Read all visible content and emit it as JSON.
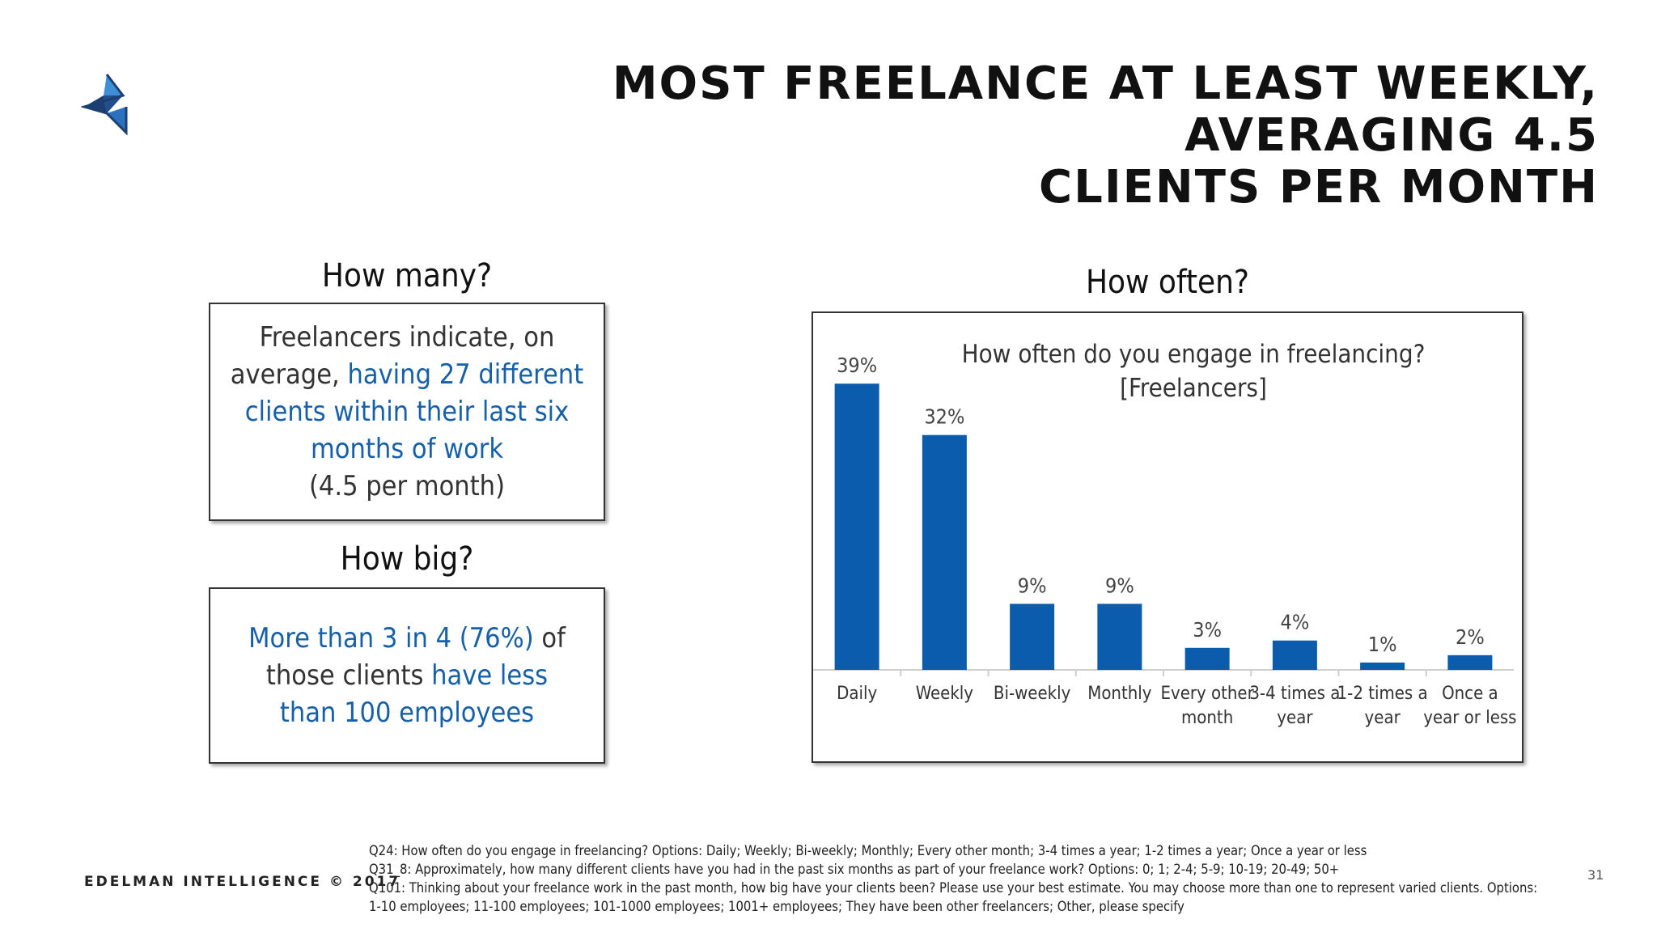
{
  "title_line1": "MOST FREELANCE AT LEAST WEEKLY, AVERAGING 4.5",
  "title_line2": "CLIENTS PER MONTH",
  "how_many": {
    "heading": "How many?",
    "text_pre": "Freelancers indicate, on average,",
    "text_highlight": "having 27 different clients within their last six months of work",
    "text_post": "(4.5 per month)"
  },
  "how_big": {
    "heading": "How big?",
    "highlight1": "More than 3 in 4 (76%)",
    "plain1": "of those clients",
    "highlight2": "have less than 100 employees"
  },
  "how_often_heading": "How often?",
  "chart_data": {
    "type": "bar",
    "title_line1": "How often do you engage in freelancing?",
    "title_line2": "[Freelancers]",
    "categories": [
      [
        "Daily"
      ],
      [
        "Weekly"
      ],
      [
        "Bi-weekly"
      ],
      [
        "Monthly"
      ],
      [
        "Every other",
        "month"
      ],
      [
        "3-4 times a",
        "year"
      ],
      [
        "1-2 times a",
        "year"
      ],
      [
        "Once a",
        "year or less"
      ]
    ],
    "values": [
      39,
      32,
      9,
      9,
      3,
      4,
      1,
      2
    ],
    "data_labels": [
      "39%",
      "32%",
      "9%",
      "9%",
      "3%",
      "4%",
      "1%",
      "2%"
    ],
    "bar_color": "#0b5cad",
    "ylim": [
      0,
      42
    ],
    "grid": false,
    "legend": "none"
  },
  "footer": {
    "brand": "EDELMAN INTELLIGENCE © 2017",
    "notes": [
      "Q24: How often do you engage in freelancing? Options: Daily; Weekly; Bi-weekly; Monthly; Every other month; 3-4 times a year; 1-2 times a year; Once a year or less",
      "Q31_8: Approximately, how many different clients have you had in the past six months as part of your freelance work? Options: 0; 1; 2-4; 5-9; 10-19; 20-49; 50+",
      "Q101: Thinking about your freelance work in the past month, how big have your clients been? Please use your best estimate. You may choose more than one to represent varied clients. Options:",
      "1-10 employees; 11-100 employees; 101-1000 employees; 1001+ employees; They have been other freelancers; Other, please specify"
    ],
    "page_number": "31"
  }
}
